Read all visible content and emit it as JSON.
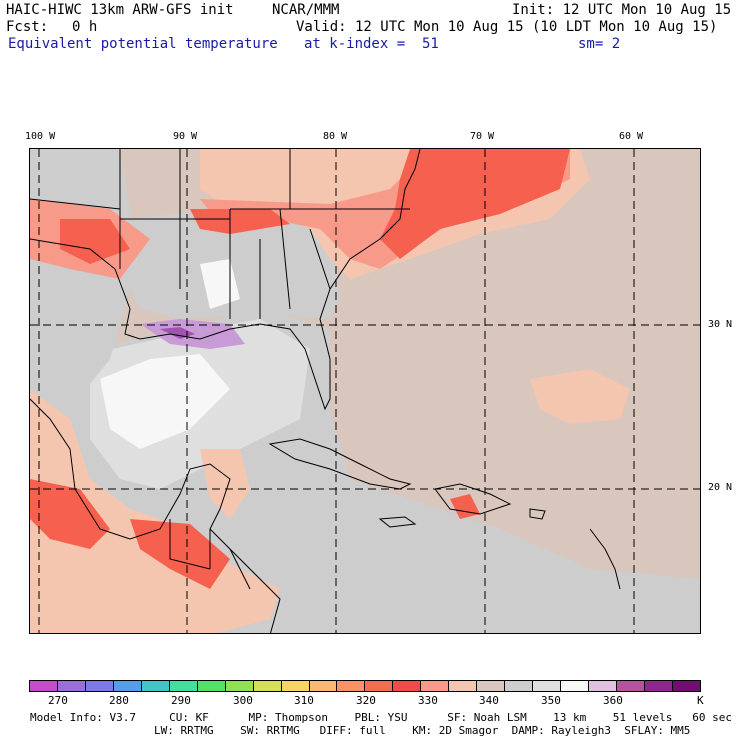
{
  "header": {
    "title": "HAIC-HIWC 13km ARW-GFS init",
    "org": "NCAR/MMM",
    "init": "Init: 12 UTC Mon 10 Aug 15",
    "fcst_label": "Fcst:",
    "fcst_value": "0 h",
    "valid": "Valid: 12 UTC Mon 10 Aug 15 (10 LDT Mon 10 Aug 15)",
    "field": "Equivalent potential temperature",
    "level": "at k-index =  51",
    "smooth": "sm= 2"
  },
  "axes": {
    "lon_labels": [
      "100 W",
      "90 W",
      "80 W",
      "70 W",
      "60 W"
    ],
    "lat_labels": [
      "30 N",
      "20 N"
    ]
  },
  "colorbar": {
    "colors": [
      "#c14fc7",
      "#9a6fd6",
      "#7b7be3",
      "#5a9de7",
      "#3fc7c7",
      "#3fe0a0",
      "#55e06a",
      "#8fe055",
      "#d6e054",
      "#f7d36a",
      "#f8b877",
      "#f8926a",
      "#f76a55",
      "#f54a48",
      "#f79a8a",
      "#f4c6b0",
      "#d9c6bd",
      "#cdcdcd",
      "#dfdfdf",
      "#f7f7f7",
      "#dec2e0",
      "#b0559e",
      "#8b2a8b",
      "#6f0f6f"
    ],
    "tick_labels": [
      "270",
      "280",
      "290",
      "300",
      "310",
      "320",
      "330",
      "340",
      "350",
      "360"
    ],
    "units": "K"
  },
  "model_info": {
    "line1": "Model Info: V3.7     CU: KF      MP: Thompson    PBL: YSU      SF: Noah LSM    13 km    51 levels   60 sec",
    "line2": "LW: RRTMG    SW: RRTMG   DIFF: full    KM: 2D Smagor  DAMP: Rayleigh3  SFLAY: MM5"
  },
  "map": {
    "fill_colors": {
      "ocean_background": "#d9c6bd",
      "warm": "#f4c6b0",
      "hot": "#f79a8a",
      "very_hot": "#f5604f",
      "land_gray": "#cdcdcd",
      "cool": "#dfdfdf",
      "cold": "#f7f7f7",
      "coldest": "#c89ad6",
      "deep": "#a055b0"
    }
  }
}
